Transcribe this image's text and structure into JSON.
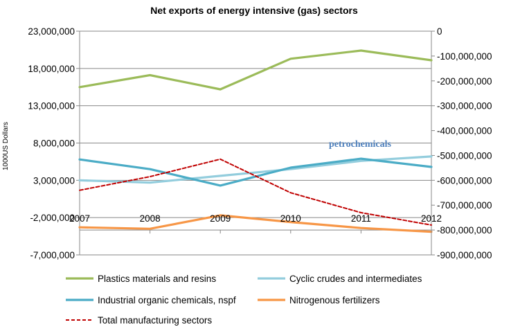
{
  "chart_data": {
    "type": "line",
    "title": "Net exports of energy intensive  (gas) sectors",
    "ylabel": "1000US Dollars",
    "y2label": "",
    "x": [
      "2007",
      "2008",
      "2009",
      "2010",
      "2011",
      "2012"
    ],
    "ylim": [
      -7000000,
      23000000
    ],
    "y2lim": [
      -900000000,
      0
    ],
    "yticks": [
      "23,000,000",
      "18,000,000",
      "13,000,000",
      "8,000,000",
      "3,000,000",
      "-2,000,000",
      "-7,000,000"
    ],
    "y2ticks": [
      "0",
      "-100,000,000",
      "-200,000,000",
      "-300,000,000",
      "-400,000,000",
      "-500,000,000",
      "-600,000,000",
      "-700,000,000",
      "-800,000,000",
      "-900,000,000"
    ],
    "grid": true,
    "legend_position": "bottom",
    "annotation": "petrochemicals",
    "series": [
      {
        "name": "Plastics materials and resins",
        "axis": "left",
        "color": "#9bbb59",
        "dash": false,
        "values": [
          15500000,
          17100000,
          15200000,
          19300000,
          20400000,
          19100000
        ]
      },
      {
        "name": "Cyclic crudes and intermediates",
        "axis": "left",
        "color": "#93cddd",
        "dash": false,
        "values": [
          3000000,
          2700000,
          3600000,
          4500000,
          5600000,
          6200000
        ]
      },
      {
        "name": "Industrial organic chemicals, nspf",
        "axis": "left",
        "color": "#4bacc6",
        "dash": false,
        "values": [
          5800000,
          4500000,
          2300000,
          4700000,
          5900000,
          4800000
        ]
      },
      {
        "name": "Nitrogenous fertilizers",
        "axis": "left",
        "color": "#f79646",
        "dash": false,
        "values": [
          -3300000,
          -3500000,
          -1700000,
          -2600000,
          -3400000,
          -3900000
        ]
      },
      {
        "name": "Total manufacturing sectors",
        "axis": "right",
        "color": "#c00000",
        "dash": true,
        "values": [
          -640000000,
          -585000000,
          -515000000,
          -650000000,
          -730000000,
          -780000000
        ]
      }
    ]
  }
}
